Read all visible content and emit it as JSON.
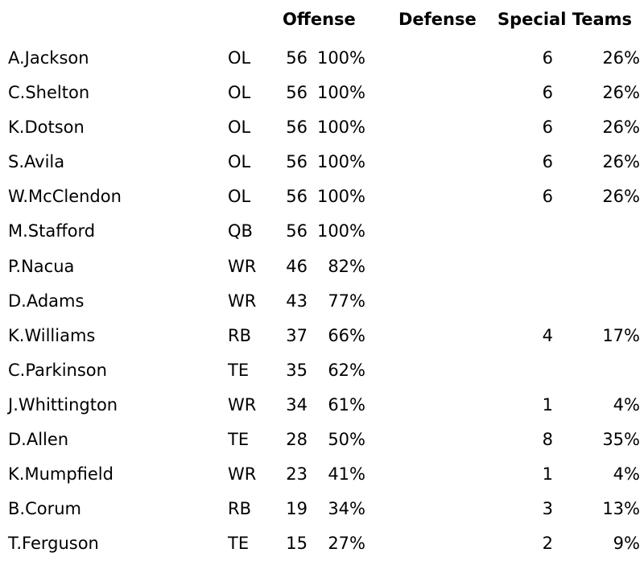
{
  "headers": {
    "offense": "Offense",
    "defense": "Defense",
    "special_teams": "Special Teams"
  },
  "players": [
    {
      "name": "A.Jackson",
      "pos": "OL",
      "off_snaps": "56",
      "off_pct": "100%",
      "st_snaps": "6",
      "st_pct": "26%"
    },
    {
      "name": "C.Shelton",
      "pos": "OL",
      "off_snaps": "56",
      "off_pct": "100%",
      "st_snaps": "6",
      "st_pct": "26%"
    },
    {
      "name": "K.Dotson",
      "pos": "OL",
      "off_snaps": "56",
      "off_pct": "100%",
      "st_snaps": "6",
      "st_pct": "26%"
    },
    {
      "name": "S.Avila",
      "pos": "OL",
      "off_snaps": "56",
      "off_pct": "100%",
      "st_snaps": "6",
      "st_pct": "26%"
    },
    {
      "name": "W.McClendon",
      "pos": "OL",
      "off_snaps": "56",
      "off_pct": "100%",
      "st_snaps": "6",
      "st_pct": "26%"
    },
    {
      "name": "M.Stafford",
      "pos": "QB",
      "off_snaps": "56",
      "off_pct": "100%",
      "st_snaps": "",
      "st_pct": ""
    },
    {
      "name": "P.Nacua",
      "pos": "WR",
      "off_snaps": "46",
      "off_pct": "82%",
      "st_snaps": "",
      "st_pct": ""
    },
    {
      "name": "D.Adams",
      "pos": "WR",
      "off_snaps": "43",
      "off_pct": "77%",
      "st_snaps": "",
      "st_pct": ""
    },
    {
      "name": "K.Williams",
      "pos": "RB",
      "off_snaps": "37",
      "off_pct": "66%",
      "st_snaps": "4",
      "st_pct": "17%"
    },
    {
      "name": "C.Parkinson",
      "pos": "TE",
      "off_snaps": "35",
      "off_pct": "62%",
      "st_snaps": "",
      "st_pct": ""
    },
    {
      "name": "J.Whittington",
      "pos": "WR",
      "off_snaps": "34",
      "off_pct": "61%",
      "st_snaps": "1",
      "st_pct": "4%"
    },
    {
      "name": "D.Allen",
      "pos": "TE",
      "off_snaps": "28",
      "off_pct": "50%",
      "st_snaps": "8",
      "st_pct": "35%"
    },
    {
      "name": "K.Mumpfield",
      "pos": "WR",
      "off_snaps": "23",
      "off_pct": "41%",
      "st_snaps": "1",
      "st_pct": "4%"
    },
    {
      "name": "B.Corum",
      "pos": "RB",
      "off_snaps": "19",
      "off_pct": "34%",
      "st_snaps": "3",
      "st_pct": "13%"
    },
    {
      "name": "T.Ferguson",
      "pos": "TE",
      "off_snaps": "15",
      "off_pct": "27%",
      "st_snaps": "2",
      "st_pct": "9%"
    }
  ]
}
